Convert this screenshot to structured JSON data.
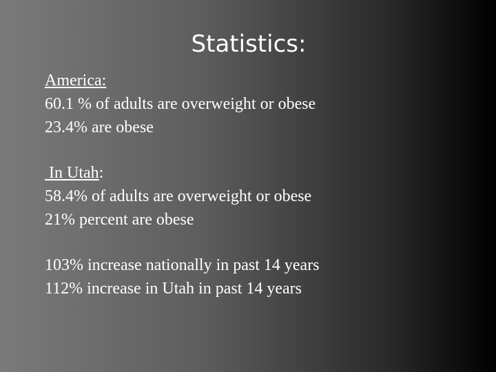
{
  "slide": {
    "title": "Statistics:",
    "america": {
      "heading": "America",
      "heading_suffix": ":",
      "lines": [
        "60.1 % of adults are overweight or obese",
        "23.4% are obese"
      ]
    },
    "utah": {
      "heading": " In Utah",
      "heading_suffix": ":",
      "lines": [
        "58.4% of adults are overweight or obese",
        "21% percent are obese"
      ]
    },
    "trends": {
      "lines": [
        "103% increase nationally in past 14 years",
        "112% increase in Utah in past 14 years"
      ]
    }
  }
}
